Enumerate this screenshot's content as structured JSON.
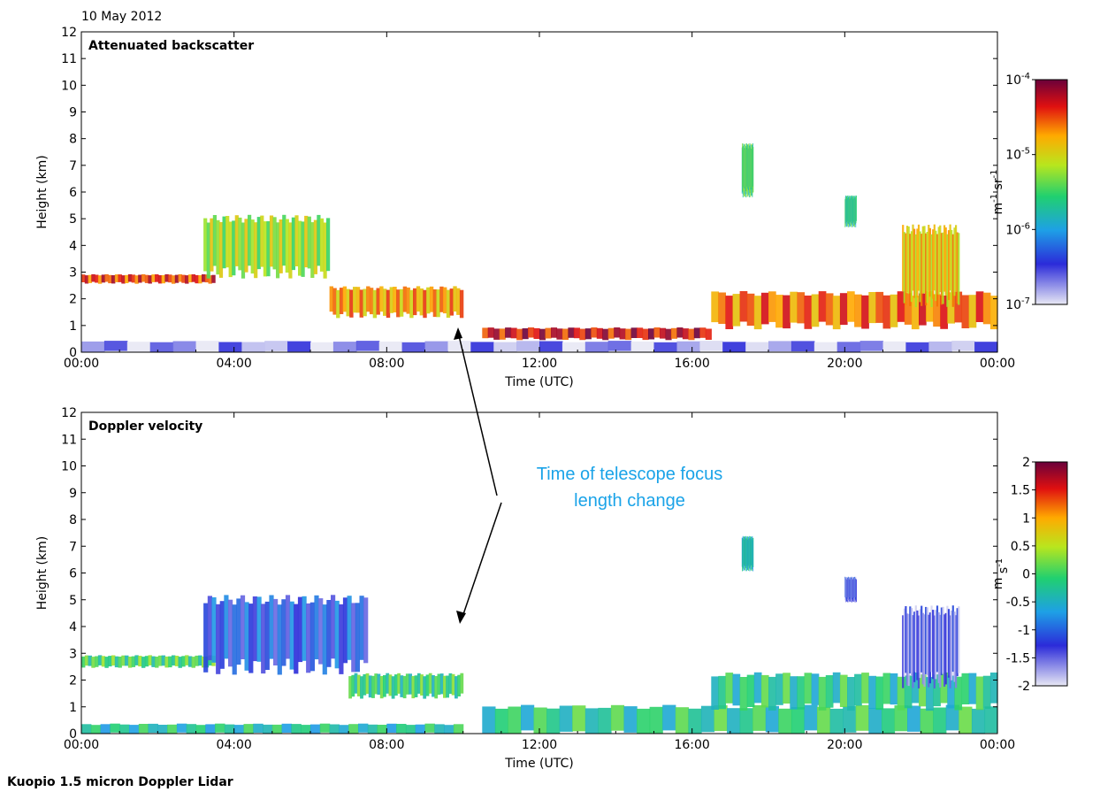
{
  "figure": {
    "date": "10 May 2012",
    "instrument": "Kuopio 1.5 micron Doppler Lidar",
    "annotation_line1": "Time of telescope focus",
    "annotation_line2": "length change",
    "annotation_color": "#1aa3e8"
  },
  "chart_data": [
    {
      "type": "heatmap",
      "title": "Attenuated backscatter",
      "xlabel": "Time (UTC)",
      "ylabel": "Height (km)",
      "x_ticks": [
        "00:00",
        "04:00",
        "08:00",
        "12:00",
        "16:00",
        "20:00",
        "00:00"
      ],
      "x_range_hours": [
        0,
        24
      ],
      "ylim": [
        0,
        12
      ],
      "y_ticks": [
        0,
        1,
        2,
        3,
        4,
        5,
        6,
        7,
        8,
        9,
        10,
        11,
        12
      ],
      "colorbar": {
        "scale": "log",
        "range": [
          1e-07,
          0.0001
        ],
        "tick_labels": [
          "10^-7",
          "10^-6",
          "10^-5",
          "10^-4"
        ],
        "label": "m-1 sr-1"
      },
      "features": [
        {
          "name": "boundary layer",
          "t0": 0,
          "t1": 24,
          "h0": 0.0,
          "h1": 0.4,
          "level": 0.08
        },
        {
          "name": "cloud base",
          "t0": 0,
          "t1": 3.5,
          "h0": 2.6,
          "h1": 2.9,
          "level": 0.85
        },
        {
          "name": "upper cloud",
          "t0": 3.2,
          "t1": 6.5,
          "h0": 3.0,
          "h1": 5.0,
          "level": 0.6
        },
        {
          "name": "descending layer",
          "t0": 6.5,
          "t1": 10,
          "h0": 1.4,
          "h1": 2.4,
          "level": 0.75
        },
        {
          "name": "low cloud",
          "t0": 10.5,
          "t1": 16.5,
          "h0": 0.5,
          "h1": 0.9,
          "level": 0.9
        },
        {
          "name": "evening cloud",
          "t0": 16.5,
          "t1": 24,
          "h0": 1.0,
          "h1": 2.2,
          "level": 0.8
        },
        {
          "name": "late upper cloud",
          "t0": 21.5,
          "t1": 23,
          "h0": 2.0,
          "h1": 4.6,
          "level": 0.7
        },
        {
          "name": "isolated cloud",
          "t0": 17.3,
          "t1": 17.6,
          "h0": 6.0,
          "h1": 7.7,
          "level": 0.5
        },
        {
          "name": "mid cloud",
          "t0": 20.0,
          "t1": 20.3,
          "h0": 4.8,
          "h1": 5.8,
          "level": 0.45
        }
      ]
    },
    {
      "type": "heatmap",
      "title": "Doppler velocity",
      "xlabel": "Time (UTC)",
      "ylabel": "Height (km)",
      "x_ticks": [
        "00:00",
        "04:00",
        "08:00",
        "12:00",
        "16:00",
        "20:00",
        "00:00"
      ],
      "x_range_hours": [
        0,
        24
      ],
      "ylim": [
        0,
        12
      ],
      "y_ticks": [
        0,
        1,
        2,
        3,
        4,
        5,
        6,
        7,
        8,
        9,
        10,
        11,
        12
      ],
      "colorbar": {
        "scale": "linear",
        "range": [
          -2,
          2
        ],
        "tick_labels": [
          "-2",
          "-1.5",
          "-1",
          "-0.5",
          "0",
          "0.5",
          "1",
          "1.5",
          "2"
        ],
        "label": "m s-1"
      },
      "features": [
        {
          "name": "surface layer",
          "t0": 0,
          "t1": 10,
          "h0": 0.0,
          "h1": 0.35,
          "level": 0.42
        },
        {
          "name": "boundary layer",
          "t0": 10.5,
          "t1": 24,
          "h0": 0.0,
          "h1": 1.0,
          "level": 0.45
        },
        {
          "name": "cloud base",
          "t0": 0,
          "t1": 3.5,
          "h0": 2.5,
          "h1": 2.9,
          "level": 0.5
        },
        {
          "name": "falling layer",
          "t0": 3.2,
          "t1": 7.5,
          "h0": 2.5,
          "h1": 5.0,
          "level": 0.22
        },
        {
          "name": "descending layer",
          "t0": 7.0,
          "t1": 10,
          "h0": 1.4,
          "h1": 2.2,
          "level": 0.48
        },
        {
          "name": "evening layer",
          "t0": 16.5,
          "t1": 24,
          "h0": 1.0,
          "h1": 2.2,
          "level": 0.45
        },
        {
          "name": "late upper cloud",
          "t0": 21.5,
          "t1": 23,
          "h0": 2.0,
          "h1": 4.6,
          "level": 0.12
        },
        {
          "name": "isolated cloud",
          "t0": 17.3,
          "t1": 17.6,
          "h0": 6.2,
          "h1": 7.3,
          "level": 0.4
        },
        {
          "name": "mid cloud",
          "t0": 20.0,
          "t1": 20.3,
          "h0": 5.0,
          "h1": 5.8,
          "level": 0.15
        }
      ]
    }
  ]
}
